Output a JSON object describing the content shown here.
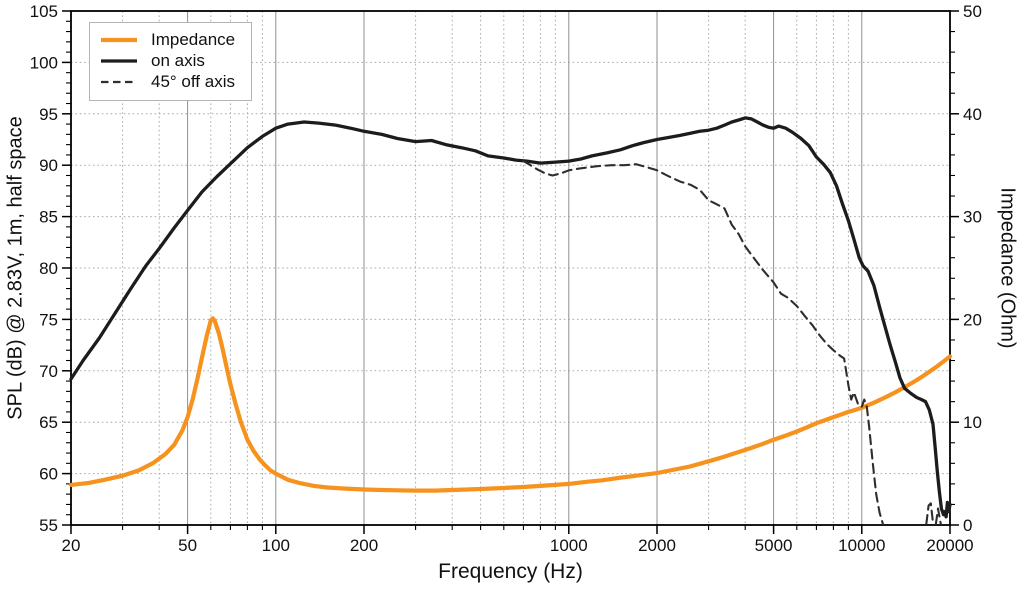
{
  "axes": {
    "x": {
      "title": "Frequency (Hz)",
      "scale": "log",
      "min": 20,
      "max": 20000,
      "major_ticks": [
        {
          "v": 20,
          "label": "20"
        },
        {
          "v": 50,
          "label": "50"
        },
        {
          "v": 100,
          "label": "100"
        },
        {
          "v": 200,
          "label": "200"
        },
        {
          "v": 1000,
          "label": "1000"
        },
        {
          "v": 2000,
          "label": "2000"
        },
        {
          "v": 5000,
          "label": "5000"
        },
        {
          "v": 10000,
          "label": "10000"
        },
        {
          "v": 20000,
          "label": "20000"
        }
      ],
      "minor_ticks": [
        30,
        40,
        60,
        70,
        80,
        90,
        300,
        400,
        500,
        600,
        700,
        800,
        900,
        3000,
        4000,
        6000,
        7000,
        8000,
        9000
      ]
    },
    "y_left": {
      "title": "SPL (dB) @ 2.83V, 1m, half space",
      "min": 55,
      "max": 105,
      "major_step": 5,
      "minor_step": 1
    },
    "y_right": {
      "title": "Impedance (Ohm)",
      "min": 0,
      "max": 50,
      "major_step": 10,
      "minor_step": 2
    }
  },
  "legend": {
    "items": [
      {
        "label": "Impedance"
      },
      {
        "label": "on axis"
      },
      {
        "label": "45° off axis"
      }
    ]
  },
  "colors": {
    "impedance": "#F6921E",
    "on_axis": "#1C1C1C",
    "off_axis": "#2E2E2E",
    "grid_minor": "#A9A9A9",
    "grid_major": "#8F8F8F",
    "frame": "#000000",
    "background": "#FFFFFF",
    "text": "#111111"
  },
  "chart_data": {
    "type": "line",
    "x_scale": "log",
    "x_range": [
      20,
      20000
    ],
    "y_left_range": [
      55,
      105
    ],
    "y_right_range": [
      0,
      50
    ],
    "grid": true,
    "legend_position": "top-left",
    "series": [
      {
        "name": "Impedance",
        "axis": "right",
        "color": "#F6921E",
        "width": 4.2,
        "dash": false,
        "points": [
          [
            20,
            3.9
          ],
          [
            23,
            4.1
          ],
          [
            26,
            4.4
          ],
          [
            30,
            4.8
          ],
          [
            34,
            5.3
          ],
          [
            38,
            6.0
          ],
          [
            42,
            6.9
          ],
          [
            45,
            7.8
          ],
          [
            48,
            9.2
          ],
          [
            50,
            10.5
          ],
          [
            52,
            12.2
          ],
          [
            54,
            14.2
          ],
          [
            56,
            16.3
          ],
          [
            58,
            18.3
          ],
          [
            60,
            19.9
          ],
          [
            61,
            20.1
          ],
          [
            62,
            19.8
          ],
          [
            64,
            18.6
          ],
          [
            66,
            17.0
          ],
          [
            68,
            15.3
          ],
          [
            70,
            13.7
          ],
          [
            73,
            11.7
          ],
          [
            76,
            10.0
          ],
          [
            80,
            8.3
          ],
          [
            84,
            7.2
          ],
          [
            88,
            6.4
          ],
          [
            92,
            5.8
          ],
          [
            96,
            5.3
          ],
          [
            100,
            5.0
          ],
          [
            110,
            4.4
          ],
          [
            120,
            4.1
          ],
          [
            135,
            3.8
          ],
          [
            150,
            3.65
          ],
          [
            170,
            3.55
          ],
          [
            200,
            3.45
          ],
          [
            230,
            3.4
          ],
          [
            260,
            3.38
          ],
          [
            300,
            3.35
          ],
          [
            350,
            3.35
          ],
          [
            400,
            3.4
          ],
          [
            450,
            3.45
          ],
          [
            500,
            3.5
          ],
          [
            600,
            3.6
          ],
          [
            700,
            3.7
          ],
          [
            800,
            3.8
          ],
          [
            900,
            3.9
          ],
          [
            1000,
            4.0
          ],
          [
            1150,
            4.2
          ],
          [
            1300,
            4.35
          ],
          [
            1500,
            4.6
          ],
          [
            1700,
            4.8
          ],
          [
            2000,
            5.05
          ],
          [
            2300,
            5.4
          ],
          [
            2600,
            5.7
          ],
          [
            3000,
            6.2
          ],
          [
            3400,
            6.65
          ],
          [
            3800,
            7.1
          ],
          [
            4200,
            7.5
          ],
          [
            4600,
            7.9
          ],
          [
            5000,
            8.3
          ],
          [
            5500,
            8.7
          ],
          [
            6000,
            9.1
          ],
          [
            6500,
            9.5
          ],
          [
            7000,
            9.9
          ],
          [
            7500,
            10.2
          ],
          [
            8000,
            10.5
          ],
          [
            8500,
            10.75
          ],
          [
            9000,
            11.0
          ],
          [
            9500,
            11.2
          ],
          [
            10000,
            11.4
          ],
          [
            11000,
            11.9
          ],
          [
            12000,
            12.4
          ],
          [
            13000,
            12.9
          ],
          [
            14000,
            13.4
          ],
          [
            15000,
            13.9
          ],
          [
            16000,
            14.4
          ],
          [
            17000,
            14.9
          ],
          [
            18000,
            15.4
          ],
          [
            19000,
            15.9
          ],
          [
            20000,
            16.4
          ]
        ]
      },
      {
        "name": "on axis",
        "axis": "left",
        "color": "#1C1C1C",
        "width": 3.3,
        "dash": false,
        "points": [
          [
            20,
            69.2
          ],
          [
            22,
            71.0
          ],
          [
            25,
            73.2
          ],
          [
            28,
            75.4
          ],
          [
            32,
            78.0
          ],
          [
            36,
            80.2
          ],
          [
            40,
            81.9
          ],
          [
            45,
            83.9
          ],
          [
            50,
            85.6
          ],
          [
            56,
            87.4
          ],
          [
            63,
            88.9
          ],
          [
            71,
            90.3
          ],
          [
            80,
            91.7
          ],
          [
            90,
            92.8
          ],
          [
            100,
            93.6
          ],
          [
            110,
            94.0
          ],
          [
            125,
            94.2
          ],
          [
            140,
            94.1
          ],
          [
            160,
            93.9
          ],
          [
            180,
            93.6
          ],
          [
            200,
            93.3
          ],
          [
            230,
            93.0
          ],
          [
            260,
            92.6
          ],
          [
            300,
            92.3
          ],
          [
            340,
            92.4
          ],
          [
            380,
            92.0
          ],
          [
            430,
            91.7
          ],
          [
            480,
            91.4
          ],
          [
            530,
            90.9
          ],
          [
            600,
            90.7
          ],
          [
            660,
            90.5
          ],
          [
            720,
            90.4
          ],
          [
            800,
            90.2
          ],
          [
            900,
            90.3
          ],
          [
            1000,
            90.4
          ],
          [
            1100,
            90.6
          ],
          [
            1200,
            90.9
          ],
          [
            1350,
            91.2
          ],
          [
            1500,
            91.5
          ],
          [
            1650,
            91.9
          ],
          [
            1800,
            92.2
          ],
          [
            2000,
            92.5
          ],
          [
            2200,
            92.7
          ],
          [
            2400,
            92.9
          ],
          [
            2600,
            93.1
          ],
          [
            2800,
            93.3
          ],
          [
            3000,
            93.4
          ],
          [
            3200,
            93.6
          ],
          [
            3400,
            93.9
          ],
          [
            3600,
            94.2
          ],
          [
            3800,
            94.4
          ],
          [
            4000,
            94.6
          ],
          [
            4200,
            94.5
          ],
          [
            4400,
            94.2
          ],
          [
            4600,
            93.9
          ],
          [
            4800,
            93.7
          ],
          [
            5000,
            93.6
          ],
          [
            5200,
            93.8
          ],
          [
            5500,
            93.6
          ],
          [
            5800,
            93.2
          ],
          [
            6200,
            92.6
          ],
          [
            6600,
            91.9
          ],
          [
            7000,
            90.8
          ],
          [
            7400,
            90.1
          ],
          [
            7800,
            89.3
          ],
          [
            8200,
            88.0
          ],
          [
            8600,
            86.2
          ],
          [
            9000,
            84.6
          ],
          [
            9400,
            82.8
          ],
          [
            9800,
            81.0
          ],
          [
            10100,
            80.2
          ],
          [
            10500,
            79.7
          ],
          [
            11000,
            78.3
          ],
          [
            11500,
            76.2
          ],
          [
            12000,
            74.3
          ],
          [
            12500,
            72.5
          ],
          [
            13000,
            70.9
          ],
          [
            13500,
            69.3
          ],
          [
            14000,
            68.3
          ],
          [
            14700,
            67.8
          ],
          [
            15400,
            67.4
          ],
          [
            16000,
            67.2
          ],
          [
            16500,
            67.0
          ],
          [
            17000,
            66.2
          ],
          [
            17500,
            64.8
          ],
          [
            17800,
            62.5
          ],
          [
            18100,
            60.2
          ],
          [
            18400,
            58.2
          ],
          [
            18700,
            56.6
          ],
          [
            19000,
            56.0
          ],
          [
            19200,
            56.3
          ],
          [
            19400,
            55.8
          ],
          [
            19600,
            57.2
          ],
          [
            19800,
            56.3
          ],
          [
            20000,
            57.0
          ]
        ]
      },
      {
        "name": "45° off axis",
        "axis": "left",
        "color": "#2E2E2E",
        "width": 2.1,
        "dash": true,
        "segments": [
          [
            [
              700,
              90.4
            ],
            [
              740,
              90.0
            ],
            [
              780,
              89.6
            ],
            [
              830,
              89.2
            ],
            [
              880,
              89.0
            ],
            [
              940,
              89.2
            ],
            [
              1000,
              89.5
            ],
            [
              1100,
              89.7
            ],
            [
              1250,
              89.9
            ],
            [
              1400,
              90.0
            ],
            [
              1550,
              90.0
            ],
            [
              1700,
              90.1
            ],
            [
              1850,
              89.8
            ],
            [
              2000,
              89.5
            ],
            [
              2200,
              88.9
            ],
            [
              2400,
              88.4
            ],
            [
              2600,
              88.1
            ],
            [
              2800,
              87.6
            ],
            [
              3000,
              86.6
            ],
            [
              3200,
              86.2
            ],
            [
              3400,
              85.8
            ],
            [
              3600,
              84.2
            ],
            [
              3800,
              83.3
            ],
            [
              4000,
              82.1
            ],
            [
              4300,
              80.9
            ],
            [
              4600,
              79.8
            ],
            [
              5000,
              78.6
            ],
            [
              5300,
              77.5
            ],
            [
              5600,
              77.1
            ],
            [
              6000,
              76.3
            ],
            [
              6400,
              75.3
            ],
            [
              6800,
              74.4
            ],
            [
              7200,
              73.4
            ],
            [
              7600,
              72.6
            ],
            [
              8000,
              72.0
            ],
            [
              8400,
              71.5
            ],
            [
              8700,
              71.2
            ],
            [
              9000,
              68.6
            ],
            [
              9200,
              67.2
            ],
            [
              9400,
              67.9
            ],
            [
              9700,
              66.8
            ],
            [
              10000,
              66.5
            ],
            [
              10200,
              67.2
            ],
            [
              10400,
              66.5
            ],
            [
              10600,
              64.5
            ],
            [
              10900,
              61.0
            ],
            [
              11200,
              58.0
            ],
            [
              11500,
              56.2
            ],
            [
              11800,
              55.1
            ]
          ],
          [
            [
              16600,
              55.1
            ],
            [
              16900,
              56.9
            ],
            [
              17200,
              57.1
            ],
            [
              17500,
              55.2
            ]
          ],
          [
            [
              17900,
              55.1
            ],
            [
              18200,
              56.6
            ],
            [
              18600,
              55.1
            ]
          ]
        ]
      }
    ]
  }
}
